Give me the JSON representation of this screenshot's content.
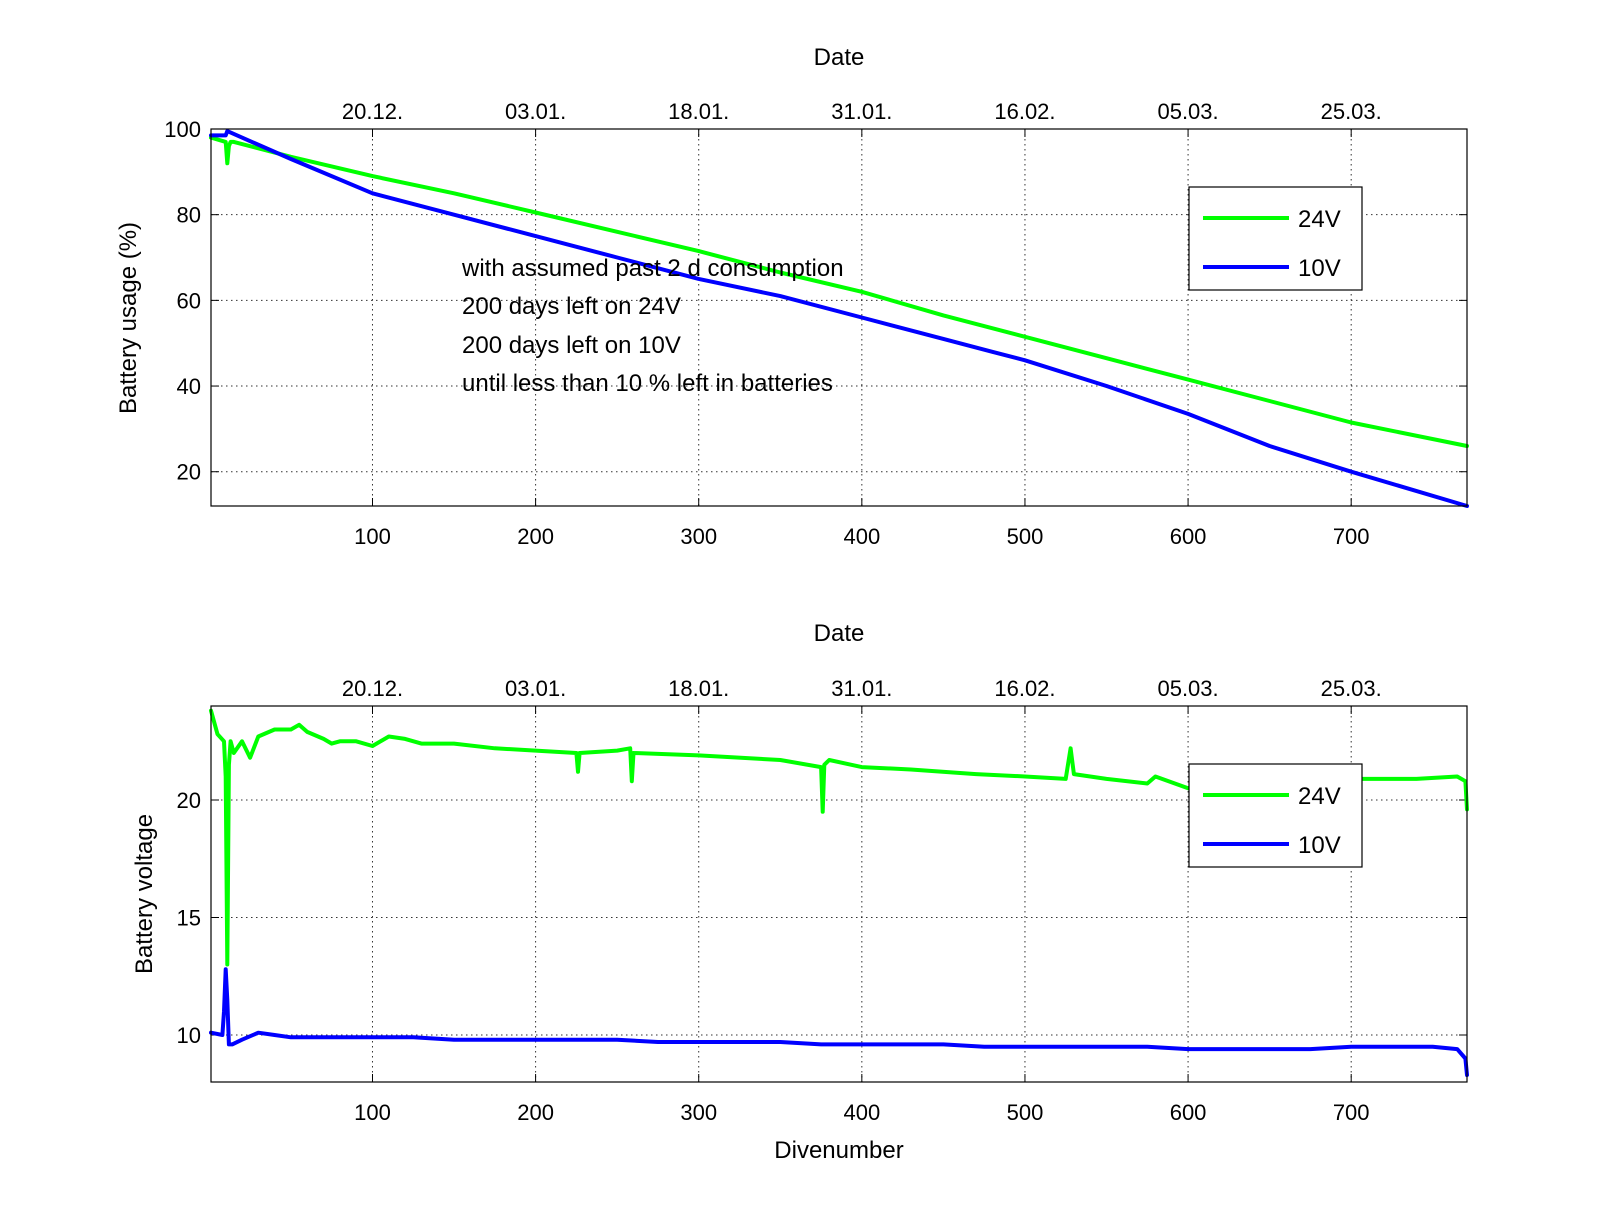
{
  "chart_data": [
    {
      "type": "line",
      "title": "Date",
      "xlabel": "",
      "ylabel": "Battery usage (%)",
      "xlim": [
        1,
        771
      ],
      "ylim": [
        12,
        100
      ],
      "xticks": [
        100,
        200,
        300,
        400,
        500,
        600,
        700
      ],
      "yticks": [
        20,
        40,
        60,
        80,
        100
      ],
      "top_ticks": [
        "20.12.",
        "03.01.",
        "18.01.",
        "31.01.",
        "16.02.",
        "05.03.",
        "25.03."
      ],
      "grid": true,
      "legend_position": "top-right",
      "annotation_lines": [
        "with assumed past 2 d consumption",
        "200 days left on 24V",
        "200 days left on 10V",
        "until less than 10 % left in batteries"
      ],
      "series": [
        {
          "name": "24V",
          "color": "#00ff00",
          "x": [
            1,
            10,
            11,
            12,
            13,
            15,
            50,
            100,
            150,
            200,
            250,
            300,
            350,
            400,
            450,
            500,
            550,
            600,
            650,
            700,
            771
          ],
          "y": [
            98,
            97,
            92,
            96,
            97,
            97,
            93.5,
            89,
            85,
            80.5,
            76,
            71.5,
            66.5,
            62,
            56.5,
            51.5,
            46.5,
            41.5,
            36.5,
            31.5,
            26
          ]
        },
        {
          "name": "10V",
          "color": "#0000ff",
          "x": [
            1,
            10,
            11,
            20,
            50,
            100,
            150,
            200,
            250,
            300,
            350,
            400,
            450,
            480,
            500,
            550,
            600,
            650,
            700,
            771
          ],
          "y": [
            98.5,
            98.5,
            99.5,
            98,
            93,
            85,
            80,
            75,
            70,
            65,
            61,
            56,
            51,
            48,
            46,
            40,
            33.5,
            26,
            20,
            12
          ]
        }
      ]
    },
    {
      "type": "line",
      "title": "Date",
      "xlabel": "Divenumber",
      "ylabel": "Battery voltage",
      "xlim": [
        1,
        771
      ],
      "ylim": [
        8,
        24
      ],
      "xticks": [
        100,
        200,
        300,
        400,
        500,
        600,
        700
      ],
      "yticks": [
        10,
        15,
        20
      ],
      "top_ticks": [
        "20.12.",
        "03.01.",
        "18.01.",
        "31.01.",
        "16.02.",
        "05.03.",
        "25.03."
      ],
      "grid": true,
      "legend_position": "top-right",
      "series": [
        {
          "name": "24V",
          "color": "#00ff00",
          "x": [
            1,
            5,
            9,
            10,
            11,
            12,
            13,
            15,
            20,
            25,
            30,
            40,
            50,
            55,
            60,
            70,
            75,
            80,
            90,
            100,
            110,
            120,
            130,
            150,
            175,
            200,
            225,
            226,
            227,
            250,
            258,
            259,
            260,
            300,
            350,
            375,
            376,
            377,
            380,
            400,
            430,
            470,
            500,
            525,
            528,
            530,
            550,
            575,
            580,
            600,
            650,
            700,
            740,
            765,
            770,
            771
          ],
          "y": [
            23.8,
            22.8,
            22.5,
            21.0,
            13.0,
            21.5,
            22.5,
            22.0,
            22.5,
            21.8,
            22.7,
            23.0,
            23.0,
            23.2,
            22.9,
            22.6,
            22.4,
            22.5,
            22.5,
            22.3,
            22.7,
            22.6,
            22.4,
            22.4,
            22.2,
            22.1,
            22.0,
            21.2,
            22.0,
            22.1,
            22.2,
            20.8,
            22.0,
            21.9,
            21.7,
            21.4,
            19.5,
            21.5,
            21.7,
            21.4,
            21.3,
            21.1,
            21.0,
            20.9,
            22.2,
            21.1,
            20.9,
            20.7,
            21.0,
            20.5,
            20.6,
            20.9,
            20.9,
            21.0,
            20.8,
            19.6
          ]
        },
        {
          "name": "10V",
          "color": "#0000ff",
          "x": [
            1,
            8,
            9,
            10,
            11,
            12,
            14,
            20,
            30,
            40,
            50,
            75,
            100,
            125,
            150,
            175,
            200,
            225,
            250,
            275,
            300,
            325,
            350,
            375,
            400,
            425,
            450,
            475,
            500,
            525,
            550,
            575,
            600,
            625,
            650,
            675,
            700,
            725,
            750,
            765,
            770,
            771
          ],
          "y": [
            10.1,
            10.0,
            11.0,
            12.8,
            11.5,
            9.6,
            9.6,
            9.8,
            10.1,
            10.0,
            9.9,
            9.9,
            9.9,
            9.9,
            9.8,
            9.8,
            9.8,
            9.8,
            9.8,
            9.7,
            9.7,
            9.7,
            9.7,
            9.6,
            9.6,
            9.6,
            9.6,
            9.5,
            9.5,
            9.5,
            9.5,
            9.5,
            9.4,
            9.4,
            9.4,
            9.4,
            9.5,
            9.5,
            9.5,
            9.4,
            9.0,
            8.3
          ]
        }
      ]
    }
  ]
}
